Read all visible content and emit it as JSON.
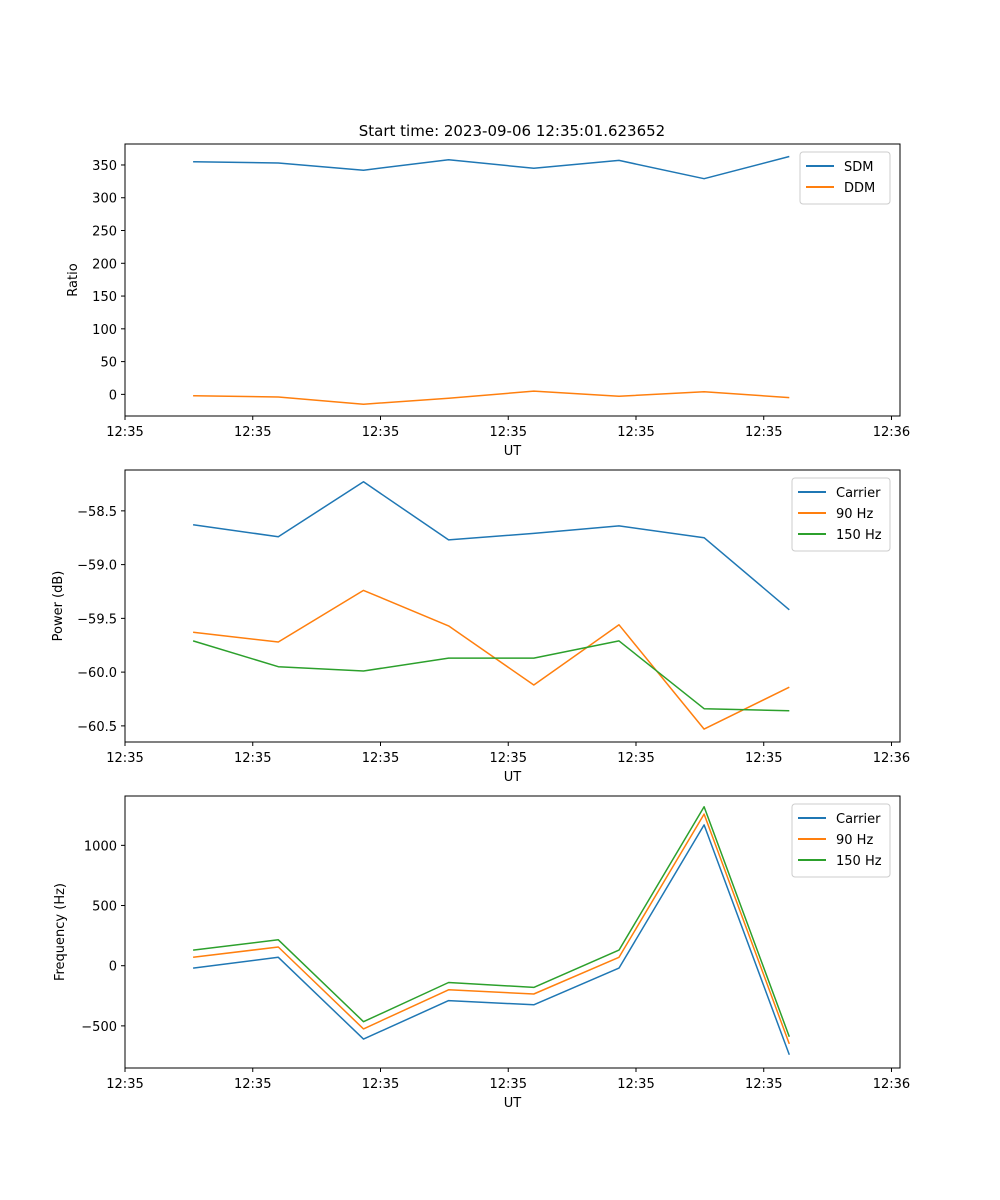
{
  "figure": {
    "title": "Start time: 2023-09-06 12:35:01.623652"
  },
  "colors": {
    "blue": "#1f77b4",
    "orange": "#ff7f0e",
    "green": "#2ca02c"
  },
  "chart_data": [
    {
      "id": "ratio",
      "type": "line",
      "title": "Start time: 2023-09-06 12:35:01.623652",
      "xlabel": "UT",
      "ylabel": "Ratio",
      "x": [
        1,
        2,
        3,
        4,
        5,
        6,
        7,
        8
      ],
      "xlim": [
        0.2,
        9.3
      ],
      "x_ticks": [
        0.2,
        1.7,
        3.2,
        4.7,
        6.2,
        7.7,
        9.2
      ],
      "x_tick_labels": [
        "12:35",
        "12:35",
        "12:35",
        "12:35",
        "12:35",
        "12:35",
        "12:36"
      ],
      "ylim": [
        -33,
        382
      ],
      "y_ticks": [
        0,
        50,
        100,
        150,
        200,
        250,
        300,
        350
      ],
      "y_tick_labels": [
        "0",
        "50",
        "100",
        "150",
        "200",
        "250",
        "300",
        "350"
      ],
      "legend": "top-right",
      "series": [
        {
          "name": "SDM",
          "color": "#1f77b4",
          "values": [
            355,
            353,
            342,
            358,
            345,
            357,
            329,
            363
          ]
        },
        {
          "name": "DDM",
          "color": "#ff7f0e",
          "values": [
            -2,
            -4,
            -15,
            -6,
            5,
            -3,
            4,
            -5
          ]
        }
      ]
    },
    {
      "id": "power",
      "type": "line",
      "xlabel": "UT",
      "ylabel": "Power (dB)",
      "x": [
        1,
        2,
        3,
        4,
        5,
        6,
        7,
        8
      ],
      "xlim": [
        0.2,
        9.3
      ],
      "x_ticks": [
        0.2,
        1.7,
        3.2,
        4.7,
        6.2,
        7.7,
        9.2
      ],
      "x_tick_labels": [
        "12:35",
        "12:35",
        "12:35",
        "12:35",
        "12:35",
        "12:35",
        "12:36"
      ],
      "ylim": [
        -60.65,
        -58.12
      ],
      "y_ticks": [
        -60.5,
        -60.0,
        -59.5,
        -59.0,
        -58.5
      ],
      "y_tick_labels": [
        "−60.5",
        "−60.0",
        "−59.5",
        "−59.0",
        "−58.5"
      ],
      "legend": "top-right",
      "series": [
        {
          "name": "Carrier",
          "color": "#1f77b4",
          "values": [
            -58.63,
            -58.74,
            -58.23,
            -58.77,
            -58.71,
            -58.64,
            -58.75,
            -59.42
          ]
        },
        {
          "name": "90 Hz",
          "color": "#ff7f0e",
          "values": [
            -59.63,
            -59.72,
            -59.24,
            -59.57,
            -60.12,
            -59.56,
            -60.53,
            -60.14
          ]
        },
        {
          "name": "150 Hz",
          "color": "#2ca02c",
          "values": [
            -59.71,
            -59.95,
            -59.99,
            -59.87,
            -59.87,
            -59.71,
            -60.34,
            -60.36
          ]
        }
      ]
    },
    {
      "id": "frequency",
      "type": "line",
      "xlabel": "UT",
      "ylabel": "Frequency (Hz)",
      "x": [
        1,
        2,
        3,
        4,
        5,
        6,
        7,
        8
      ],
      "xlim": [
        0.2,
        9.3
      ],
      "x_ticks": [
        0.2,
        1.7,
        3.2,
        4.7,
        6.2,
        7.7,
        9.2
      ],
      "x_tick_labels": [
        "12:35",
        "12:35",
        "12:35",
        "12:35",
        "12:35",
        "12:35",
        "12:36"
      ],
      "ylim": [
        -850,
        1410
      ],
      "y_ticks": [
        -500,
        0,
        500,
        1000
      ],
      "y_tick_labels": [
        "−500",
        "0",
        "500",
        "1000"
      ],
      "legend": "top-right",
      "series": [
        {
          "name": "Carrier",
          "color": "#1f77b4",
          "values": [
            -20,
            70,
            -610,
            -290,
            -325,
            -20,
            1170,
            -740
          ]
        },
        {
          "name": "90 Hz",
          "color": "#ff7f0e",
          "values": [
            70,
            155,
            -525,
            -200,
            -235,
            70,
            1260,
            -650
          ]
        },
        {
          "name": "150 Hz",
          "color": "#2ca02c",
          "values": [
            130,
            215,
            -465,
            -140,
            -180,
            130,
            1320,
            -590
          ]
        }
      ]
    }
  ]
}
